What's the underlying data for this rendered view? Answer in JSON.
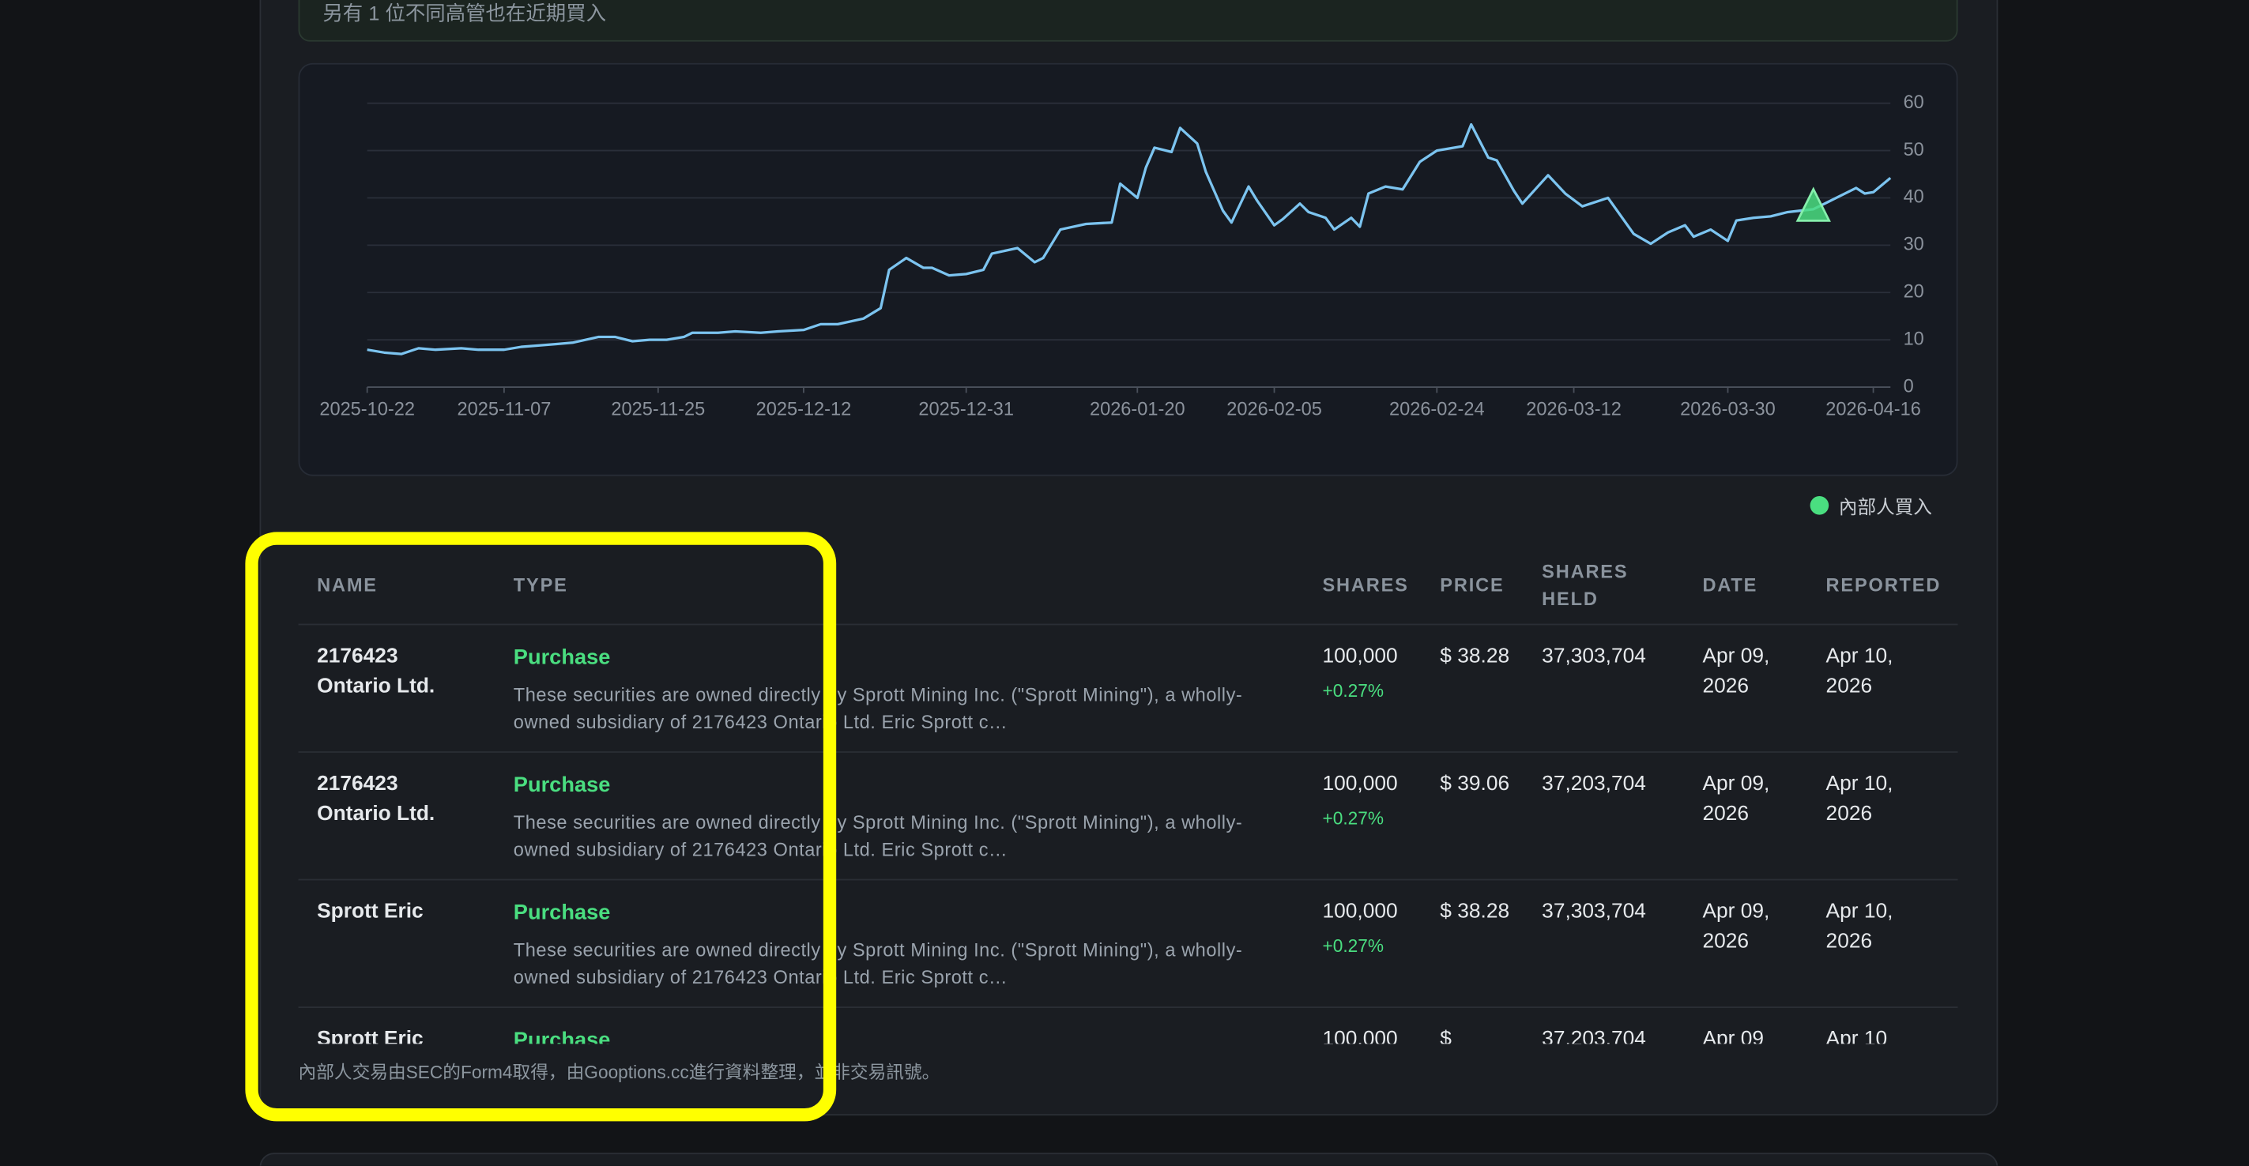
{
  "banner": "另有 1 位不同高管也在近期買入",
  "chart_data": {
    "type": "line",
    "x": [
      "2025-10-22",
      "2025-10-24",
      "2025-10-26",
      "2025-10-28",
      "2025-10-30",
      "2025-11-02",
      "2025-11-04",
      "2025-11-07",
      "2025-11-09",
      "2025-11-11",
      "2025-11-13",
      "2025-11-15",
      "2025-11-18",
      "2025-11-20",
      "2025-11-22",
      "2025-11-24",
      "2025-11-26",
      "2025-11-28",
      "2025-11-29",
      "2025-12-02",
      "2025-12-04",
      "2025-12-07",
      "2025-12-09",
      "2025-12-12",
      "2025-12-14",
      "2025-12-16",
      "2025-12-19",
      "2025-12-21",
      "2025-12-22",
      "2025-12-24",
      "2025-12-26",
      "2025-12-27",
      "2025-12-29",
      "2025-12-31",
      "2026-01-02",
      "2026-01-03",
      "2026-01-06",
      "2026-01-08",
      "2026-01-09",
      "2026-01-11",
      "2026-01-14",
      "2026-01-17",
      "2026-01-18",
      "2026-01-20",
      "2026-01-21",
      "2026-01-22",
      "2026-01-24",
      "2026-01-25",
      "2026-01-27",
      "2026-01-28",
      "2026-01-30",
      "2026-01-31",
      "2026-02-02",
      "2026-02-03",
      "2026-02-05",
      "2026-02-06",
      "2026-02-08",
      "2026-02-09",
      "2026-02-11",
      "2026-02-12",
      "2026-02-14",
      "2026-02-15",
      "2026-02-16",
      "2026-02-18",
      "2026-02-20",
      "2026-02-22",
      "2026-02-24",
      "2026-02-27",
      "2026-02-28",
      "2026-03-02",
      "2026-03-03",
      "2026-03-05",
      "2026-03-06",
      "2026-03-09",
      "2026-03-11",
      "2026-03-13",
      "2026-03-16",
      "2026-03-19",
      "2026-03-21",
      "2026-03-23",
      "2026-03-25",
      "2026-03-26",
      "2026-03-28",
      "2026-03-30",
      "2026-03-31",
      "2026-04-02",
      "2026-04-04",
      "2026-04-06",
      "2026-04-09",
      "2026-04-11",
      "2026-04-14",
      "2026-04-15",
      "2026-04-16",
      "2026-04-18"
    ],
    "series": [
      {
        "color": "#7cc4f0",
        "values": [
          7.9,
          7.3,
          7.0,
          8.2,
          7.9,
          8.2,
          7.9,
          7.9,
          8.5,
          8.8,
          9.1,
          9.4,
          10.6,
          10.6,
          9.7,
          10.0,
          10.0,
          10.6,
          11.5,
          11.5,
          11.8,
          11.5,
          11.8,
          12.1,
          13.3,
          13.3,
          14.5,
          16.7,
          24.8,
          27.3,
          25.2,
          25.2,
          23.6,
          23.9,
          24.8,
          28.2,
          29.4,
          26.4,
          27.3,
          33.3,
          34.5,
          34.8,
          43.0,
          40.0,
          46.4,
          50.6,
          49.7,
          54.8,
          51.5,
          45.5,
          37.3,
          34.8,
          42.4,
          39.4,
          34.2,
          35.5,
          38.8,
          37.0,
          35.8,
          33.3,
          35.8,
          33.9,
          40.9,
          42.4,
          41.8,
          47.6,
          50.0,
          50.9,
          55.5,
          48.5,
          47.9,
          41.5,
          38.8,
          44.8,
          40.9,
          38.2,
          40.0,
          32.4,
          30.3,
          32.7,
          34.2,
          31.8,
          33.3,
          30.9,
          35.2,
          35.8,
          36.1,
          37.0,
          37.6,
          39.4,
          42.1,
          40.9,
          41.2,
          44.2
        ]
      },
      {
        "name": "內部人買入",
        "color": "#4ade80",
        "marker": "triangle",
        "x": [
          "2026-04-09"
        ],
        "values": [
          37.6
        ]
      }
    ],
    "xlim": [
      "2025-10-22",
      "2026-04-18"
    ],
    "xticks": [
      "2025-10-22",
      "2025-11-07",
      "2025-11-25",
      "2025-12-12",
      "2025-12-31",
      "2026-01-20",
      "2026-02-05",
      "2026-02-24",
      "2026-03-12",
      "2026-03-30",
      "2026-04-16"
    ],
    "ylim": [
      0,
      60
    ],
    "yticks": [
      0,
      10,
      20,
      30,
      40,
      50,
      60
    ],
    "grid": true,
    "y_axis_side": "right",
    "legend_position": "bottom-right"
  },
  "table": {
    "headers": [
      "NAME",
      "TYPE",
      "SHARES",
      "PRICE",
      "SHARES HELD",
      "DATE",
      "REPORTED"
    ],
    "rows": [
      {
        "name": "2176423 Ontario Ltd.",
        "type": "Purchase",
        "note": "These securities are owned directly by Sprott Mining Inc. (\"Sprott Mining\"), a wholly-owned subsidiary of 2176423 Ontario Ltd. Eric Sprott c…",
        "shares": "100,000",
        "change": "+0.27%",
        "price": "$ 38.28",
        "held": "37,303,704",
        "date": "Apr 09, 2026",
        "reported": "Apr 10, 2026"
      },
      {
        "name": "2176423 Ontario Ltd.",
        "type": "Purchase",
        "note": "These securities are owned directly by Sprott Mining Inc. (\"Sprott Mining\"), a wholly-owned subsidiary of 2176423 Ontario Ltd. Eric Sprott c…",
        "shares": "100,000",
        "change": "+0.27%",
        "price": "$ 39.06",
        "held": "37,203,704",
        "date": "Apr 09, 2026",
        "reported": "Apr 10, 2026"
      },
      {
        "name": "Sprott Eric",
        "type": "Purchase",
        "note": "These securities are owned directly by Sprott Mining Inc. (\"Sprott Mining\"), a wholly-owned subsidiary of 2176423 Ontario Ltd. Eric Sprott c…",
        "shares": "100,000",
        "change": "+0.27%",
        "price": "$ 38.28",
        "held": "37,303,704",
        "date": "Apr 09, 2026",
        "reported": "Apr 10, 2026"
      },
      {
        "name": "Sprott Eric",
        "type": "Purchase",
        "note": "",
        "shares": "100,000",
        "change": "",
        "price": "$",
        "held": "37,203,704",
        "date": "Apr 09",
        "reported": "Apr 10"
      }
    ]
  },
  "footer": "內部人交易由SEC的Form4取得，由Gooptions.cc進行資料整理，並非交易訊號。"
}
